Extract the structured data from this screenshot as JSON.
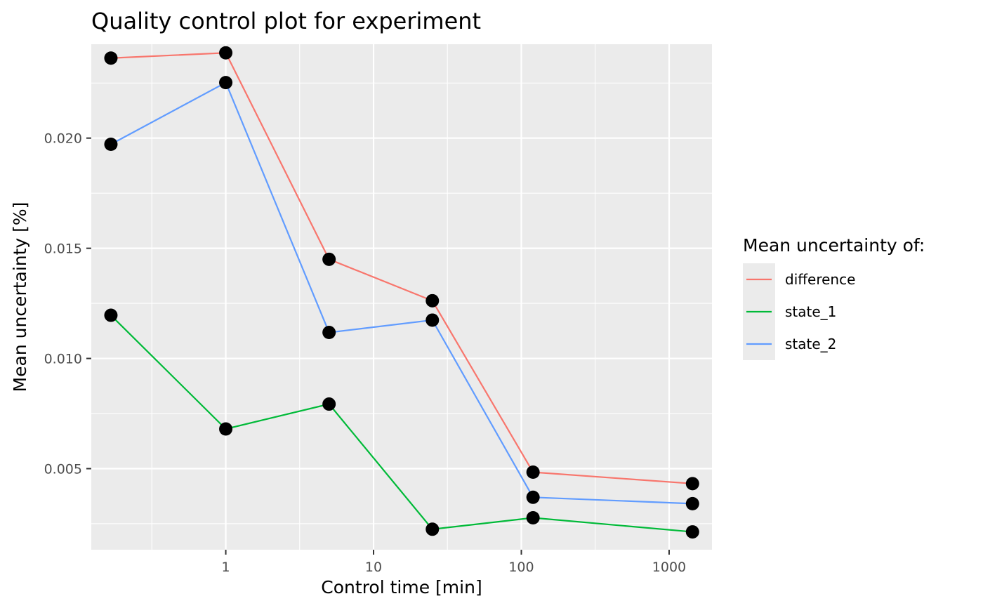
{
  "chart_data": {
    "type": "line",
    "title": "Quality control plot for experiment",
    "xlabel": "Control time [min]",
    "ylabel": "Mean uncertainty [%]",
    "x_scale": "log10",
    "x": [
      0.167,
      1,
      5,
      25,
      120,
      1440
    ],
    "xlim": [
      0.123,
      1950
    ],
    "ylim": [
      0.00132,
      0.02426
    ],
    "x_ticks": [
      1,
      10,
      100,
      1000
    ],
    "x_tick_labels": [
      "1",
      "10",
      "100",
      "1000"
    ],
    "x_minor_ticks": [
      0.316,
      3.16,
      31.6,
      316
    ],
    "y_ticks": [
      0.005,
      0.01,
      0.015,
      0.02
    ],
    "y_tick_labels": [
      "0.005",
      "0.010",
      "0.015",
      "0.020"
    ],
    "y_minor_ticks": [
      0.0025,
      0.0075,
      0.0125,
      0.0175,
      0.0225
    ],
    "grid": true,
    "legend_title": "Mean uncertainty of:",
    "legend_position": "right",
    "series": [
      {
        "name": "difference",
        "color": "#F8766D",
        "values": [
          0.02363,
          0.02387,
          0.0145,
          0.01262,
          0.00484,
          0.00432
        ]
      },
      {
        "name": "state_1",
        "color": "#00BA38",
        "values": [
          0.01196,
          0.0068,
          0.00793,
          0.00225,
          0.00277,
          0.00213
        ]
      },
      {
        "name": "state_2",
        "color": "#619CFF",
        "values": [
          0.01972,
          0.02252,
          0.01118,
          0.01174,
          0.0037,
          0.00341
        ]
      }
    ]
  }
}
